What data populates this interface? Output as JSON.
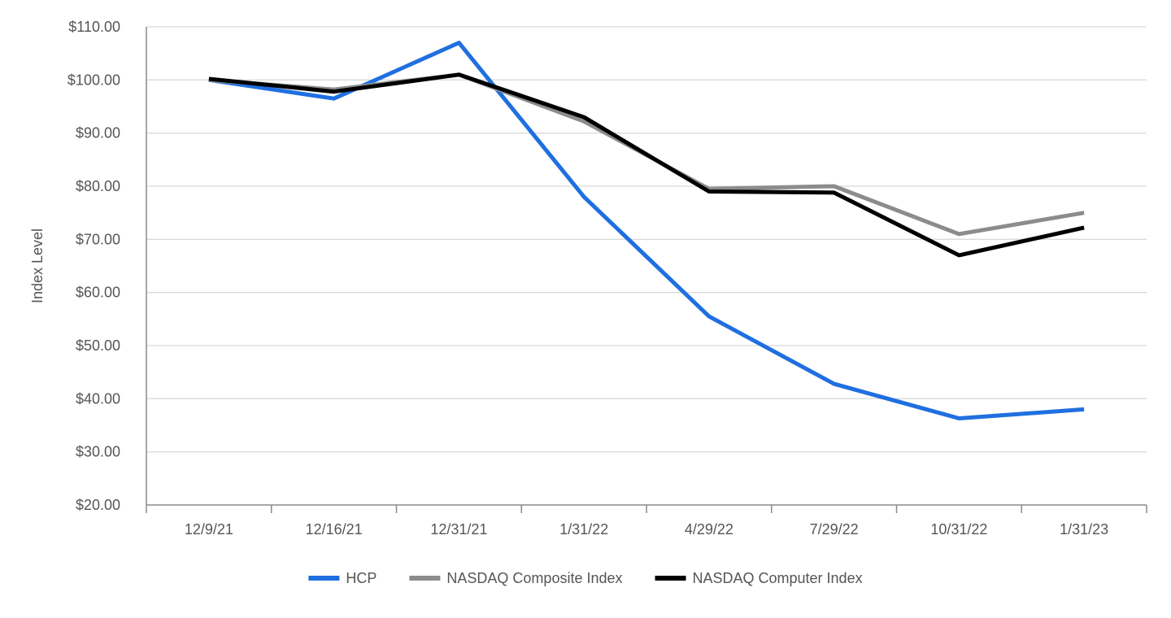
{
  "chart_data": {
    "type": "line",
    "title": "",
    "xlabel": "",
    "ylabel": "Index Level",
    "ylim": [
      20,
      110
    ],
    "y_ticks": [
      20,
      30,
      40,
      50,
      60,
      70,
      80,
      90,
      100,
      110
    ],
    "y_tick_labels": [
      "$20.00",
      "$30.00",
      "$40.00",
      "$50.00",
      "$60.00",
      "$70.00",
      "$80.00",
      "$90.00",
      "$100.00",
      "$110.00"
    ],
    "grid": true,
    "legend_position": "bottom-center",
    "categories": [
      "12/9/21",
      "12/16/21",
      "12/31/21",
      "1/31/22",
      "4/29/22",
      "7/29/22",
      "10/31/22",
      "1/31/23"
    ],
    "series": [
      {
        "name": "HCP",
        "color": "#1F6FE0",
        "values": [
          100.0,
          96.5,
          107.0,
          78.0,
          55.5,
          42.8,
          36.3,
          38.0
        ]
      },
      {
        "name": "NASDAQ Composite Index",
        "color": "#8A8C8E",
        "values": [
          100.0,
          98.2,
          101.0,
          92.2,
          79.5,
          80.0,
          71.0,
          75.0
        ]
      },
      {
        "name": "NASDAQ Computer Index",
        "color": "#000000",
        "values": [
          100.2,
          97.8,
          101.0,
          93.0,
          79.0,
          78.8,
          67.0,
          72.2
        ]
      }
    ]
  }
}
